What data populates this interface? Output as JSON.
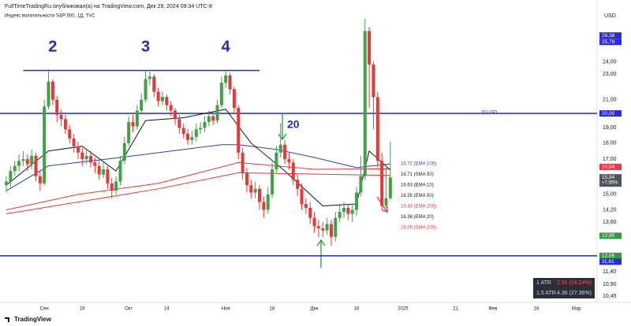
{
  "header": {
    "publisher": "FullTimeTradingRu опубликовал(а) на TradingView.com, Дек 29, 2024 09:34 UTC-8",
    "symbol": "Индекс волатильности S&P 500, 1Д, TVC",
    "currency": "USD"
  },
  "footer": "TradingView",
  "atr_table": [
    [
      "1 ATR",
      "2.91 (18.24%)"
    ],
    [
      "1.5 ATR",
      "4.36 (27.36%)"
    ]
  ],
  "chart_data": {
    "type": "candlestick",
    "log_scale": true,
    "grid": false,
    "ylim": [
      10.25,
      29.1
    ],
    "xlim": [
      -1.5,
      140
    ],
    "yticks": [
      {
        "value": 24,
        "label": "24,00"
      },
      {
        "value": 23,
        "label": "23,00"
      },
      {
        "value": 21,
        "label": "21,00"
      },
      {
        "value": 19,
        "label": "19,00"
      },
      {
        "value": 18,
        "label": "18,00"
      },
      {
        "value": 17,
        "label": "17,00"
      },
      {
        "value": 15,
        "label": "15,00"
      },
      {
        "value": 14.2,
        "label": "14,20"
      },
      {
        "value": 13.6,
        "label": "13,60"
      },
      {
        "value": 11.4,
        "label": "11,40"
      },
      {
        "value": 10.9,
        "label": "10,90"
      },
      {
        "value": 10.45,
        "label": "10,45"
      }
    ],
    "xticks": [
      {
        "value": 9,
        "label": "Сен"
      },
      {
        "value": 18,
        "label": "16"
      },
      {
        "value": 29,
        "label": "Окт"
      },
      {
        "value": 38,
        "label": "14"
      },
      {
        "value": 52,
        "label": "Ноя"
      },
      {
        "value": 63,
        "label": "18"
      },
      {
        "value": 73,
        "label": "Дек"
      },
      {
        "value": 83,
        "label": "16"
      },
      {
        "value": 94,
        "label": "2025"
      },
      {
        "value": 106.5,
        "label": "21"
      },
      {
        "value": 115.3,
        "label": "Фев"
      },
      {
        "value": 125.6,
        "label": "18"
      },
      {
        "value": 135.1,
        "label": "Мар"
      }
    ],
    "up_color": "#43a047",
    "down_color": "#e53935",
    "open": [
      15.5,
      15.7,
      16.3,
      16.6,
      16.9,
      17.0,
      16.7,
      17.2,
      16.0,
      15.6,
      20.5,
      22.4,
      21.0,
      19.9,
      19.6,
      18.9,
      18.3,
      17.8,
      17.4,
      17.0,
      17.2,
      16.8,
      16.6,
      16.1,
      16.4,
      15.6,
      15.2,
      15.7,
      16.9,
      18.0,
      19.4,
      19.1,
      20.2,
      21.0,
      22.6,
      22.8,
      21.6,
      20.9,
      21.2,
      20.6,
      20.2,
      19.6,
      19.0,
      18.6,
      18.2,
      18.4,
      18.9,
      19.0,
      19.4,
      19.8,
      19.5,
      20.6,
      22.3,
      22.9,
      21.8,
      20.4,
      17.4,
      16.2,
      15.5,
      15.1,
      15.3,
      14.6,
      14.2,
      15.0,
      16.4,
      17.4,
      17.9,
      17.0,
      16.8,
      15.8,
      15.3,
      14.5,
      14.3,
      13.8,
      13.4,
      13.3,
      13.2,
      13.5,
      12.9,
      13.8,
      14.1,
      14.3,
      14.0,
      14.2,
      15.1,
      16.0,
      26.8,
      23.8,
      21.2,
      16.9,
      14.4,
      14.8
    ],
    "high": [
      16.0,
      16.6,
      16.9,
      17.3,
      17.5,
      17.3,
      17.6,
      17.4,
      16.3,
      21.0,
      23.4,
      22.6,
      21.3,
      20.3,
      19.9,
      19.2,
      18.6,
      18.1,
      17.7,
      17.6,
      17.5,
      17.1,
      16.9,
      16.8,
      16.6,
      15.9,
      16.0,
      17.2,
      18.4,
      19.8,
      19.9,
      20.6,
      21.5,
      23.3,
      23.2,
      23.0,
      21.9,
      21.6,
      21.4,
      20.9,
      20.4,
      19.9,
      19.3,
      18.9,
      18.8,
      19.3,
      19.4,
      19.8,
      20.2,
      20.1,
      21.0,
      22.8,
      23.3,
      23.1,
      22.0,
      20.6,
      17.7,
      16.5,
      15.8,
      15.7,
      15.5,
      14.9,
      15.4,
      16.8,
      17.8,
      19.3,
      18.2,
      17.4,
      17.0,
      16.1,
      15.6,
      14.8,
      14.6,
      14.1,
      13.7,
      13.6,
      13.8,
      13.7,
      14.1,
      14.5,
      14.6,
      14.5,
      14.5,
      15.4,
      17.2,
      28.0,
      27.2,
      24.1,
      21.6,
      17.4,
      16.5,
      18.1
    ],
    "low": [
      15.1,
      15.4,
      16.0,
      16.3,
      16.6,
      16.3,
      16.4,
      15.7,
      15.2,
      15.5,
      20.3,
      20.6,
      19.4,
      19.1,
      18.6,
      18.0,
      17.4,
      17.0,
      16.6,
      16.7,
      16.5,
      16.2,
      15.8,
      15.9,
      15.3,
      14.8,
      15.0,
      15.5,
      16.7,
      17.8,
      18.7,
      18.9,
      19.9,
      20.8,
      22.1,
      21.2,
      20.5,
      20.6,
      20.2,
      19.8,
      19.2,
      18.6,
      18.3,
      17.9,
      17.9,
      18.1,
      18.6,
      18.7,
      19.1,
      19.2,
      19.3,
      20.4,
      21.9,
      21.4,
      20.0,
      17.0,
      15.8,
      15.1,
      14.8,
      14.8,
      14.2,
      13.8,
      14.0,
      14.8,
      16.2,
      17.1,
      16.7,
      16.4,
      15.5,
      14.9,
      14.2,
      14.0,
      13.5,
      13.1,
      12.9,
      12.9,
      13.0,
      12.5,
      12.7,
      13.6,
      13.8,
      13.7,
      13.6,
      13.9,
      14.9,
      15.8,
      20.4,
      18.9,
      16.5,
      14.2,
      14.3,
      14.7
    ],
    "close": [
      15.7,
      16.3,
      16.6,
      16.9,
      17.0,
      16.7,
      17.2,
      16.0,
      15.6,
      20.5,
      22.4,
      21.0,
      19.9,
      19.6,
      18.9,
      18.3,
      17.8,
      17.4,
      17.0,
      17.2,
      16.8,
      16.6,
      16.1,
      16.4,
      15.6,
      15.2,
      15.7,
      16.9,
      18.0,
      19.4,
      19.1,
      20.2,
      21.0,
      22.6,
      22.8,
      21.6,
      20.9,
      21.2,
      20.6,
      20.2,
      19.6,
      19.0,
      18.6,
      18.2,
      18.4,
      18.9,
      19.0,
      19.4,
      19.8,
      19.5,
      20.6,
      22.3,
      22.9,
      21.8,
      20.4,
      17.4,
      16.2,
      15.5,
      15.1,
      15.3,
      14.6,
      14.2,
      15.0,
      16.4,
      17.4,
      17.9,
      17.0,
      16.8,
      15.8,
      15.3,
      14.5,
      14.3,
      13.8,
      13.4,
      13.3,
      13.2,
      13.5,
      12.9,
      13.8,
      14.1,
      14.3,
      14.0,
      14.2,
      15.1,
      16.0,
      26.8,
      23.8,
      21.2,
      16.9,
      14.4,
      14.8,
      15.94
    ],
    "indicators": [
      {
        "label": "16.72 (EMA 100)",
        "color": "#2a3fbf",
        "x": [
          0,
          10,
          27,
          36,
          51,
          55,
          64,
          73,
          83,
          91
        ],
        "values": [
          15.2,
          16.6,
          17.1,
          17.4,
          17.9,
          17.9,
          17.6,
          17.1,
          16.5,
          16.72
        ]
      },
      {
        "label": "16.71 (SMA 50)",
        "color": "#131722"
      },
      {
        "label": "16.63 (EMA 10)",
        "color": "#131722"
      },
      {
        "label": "16.55 (EMA 50)",
        "color": "#131722"
      },
      {
        "label": "16.43 (EMA 200)",
        "color": "#e53935",
        "x": [
          0,
          17,
          36,
          55,
          73,
          91
        ],
        "values": [
          14.2,
          15.0,
          15.6,
          16.8,
          16.4,
          16.43
        ]
      },
      {
        "label": "16.36 (EMA 20)",
        "color": "#131722",
        "x": [
          0,
          10,
          18,
          26,
          33,
          42,
          52,
          58,
          66,
          75,
          83,
          86,
          91
        ],
        "values": [
          15.5,
          17.5,
          17.8,
          16.3,
          19.5,
          19.7,
          20.3,
          18.0,
          16.3,
          14.4,
          14.5,
          17.5,
          16.36
        ]
      },
      {
        "label": "16.05 (SMA 200)",
        "color": "#e53935",
        "x": [
          0,
          36,
          55,
          91
        ],
        "values": [
          14.0,
          15.3,
          16.2,
          16.05
        ]
      }
    ],
    "levels": [
      {
        "value": 23.3,
        "color": "#1d2dbd",
        "x": [
          4,
          60
        ]
      },
      {
        "value": 20,
        "color": "#1d2dbd",
        "label": "20 USD"
      },
      {
        "value": 12.06,
        "color": "#1d2dbd"
      }
    ],
    "annotations": [
      {
        "text": "2",
        "x": 11,
        "y": 25.3
      },
      {
        "text": "3",
        "x": 33,
        "y": 25.3
      },
      {
        "text": "4",
        "x": 52,
        "y": 25.3
      },
      {
        "text": "20",
        "x": 68,
        "y": 19.2
      }
    ],
    "price_labels": [
      {
        "value": 26.38,
        "label": "26,38",
        "color": "#2a2ae0"
      },
      {
        "value": 25.79,
        "label": "25,79",
        "color": "#2a2ae0"
      },
      {
        "value": 20,
        "label": "20,00",
        "color": "#2a2ae0"
      },
      {
        "value": 16.54,
        "label": "16,54",
        "color": "#f23645"
      },
      {
        "value": 15.94,
        "label": "15,94",
        "sub": "+7,95%",
        "color": "#50535e"
      },
      {
        "value": 12.95,
        "label": "12,95",
        "color": "#2e9d3a"
      },
      {
        "value": 12.06,
        "label": "12,06",
        "color": "#2e9d3a"
      },
      {
        "value": 11.81,
        "label": "11,81",
        "color": "#2a2ae0"
      }
    ]
  }
}
